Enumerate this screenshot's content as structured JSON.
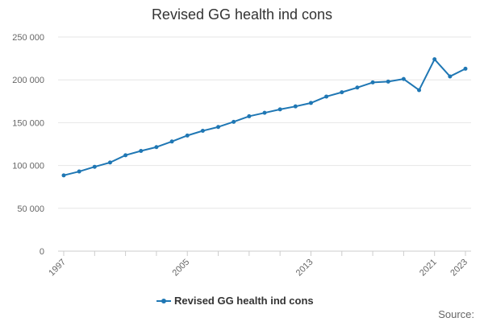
{
  "chart_data": {
    "type": "line",
    "title": "Revised GG health ind cons",
    "xlabel": "",
    "ylabel": "",
    "x": [
      1997,
      1998,
      1999,
      2000,
      2001,
      2002,
      2003,
      2004,
      2005,
      2006,
      2007,
      2008,
      2009,
      2010,
      2011,
      2012,
      2013,
      2014,
      2015,
      2016,
      2017,
      2018,
      2019,
      2020,
      2021,
      2022,
      2023
    ],
    "series": [
      {
        "name": "Revised GG health ind cons",
        "color": "#1f77b4",
        "values": [
          88500,
          93000,
          98500,
          103500,
          112000,
          117000,
          121500,
          128000,
          135000,
          140500,
          145000,
          151000,
          157500,
          161500,
          165500,
          169000,
          173000,
          180500,
          185500,
          191000,
          197000,
          198000,
          201000,
          188000,
          224000,
          204000,
          213000
        ]
      }
    ],
    "ylim": [
      0,
      250000
    ],
    "yticks": [
      0,
      50000,
      100000,
      150000,
      200000,
      250000
    ],
    "ytick_labels": [
      "0",
      "50 000",
      "100 000",
      "150 000",
      "200 000",
      "250 000"
    ],
    "xtick_labels": [
      "1997",
      "2005",
      "2013",
      "2021",
      "2023"
    ],
    "grid": true,
    "legend_position": "bottom-center",
    "source_label": "Source:"
  }
}
